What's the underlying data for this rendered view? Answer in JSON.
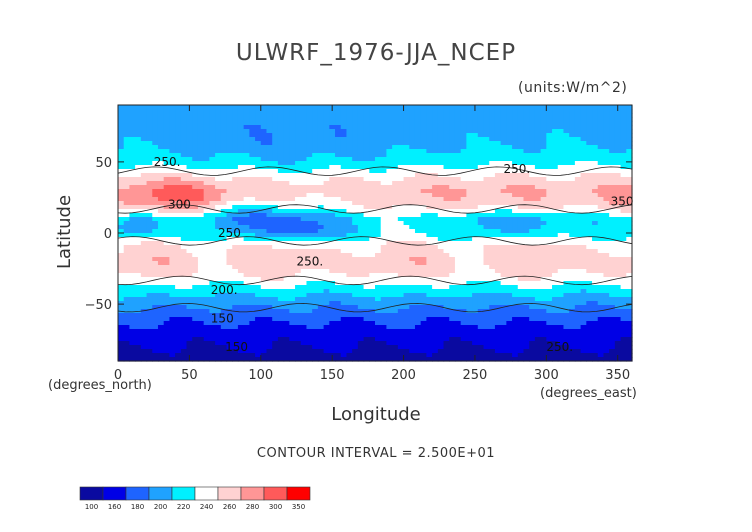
{
  "chart_data": {
    "type": "heatmap",
    "title": "ULWRF_1976-JJA_NCEP",
    "units": "(units:W/m^2)",
    "xlabel": "Longitude",
    "ylabel": "Latitude",
    "x_unit_note": "(degrees_east)",
    "y_unit_note": "(degrees_north)",
    "xlim": [
      0,
      360
    ],
    "ylim": [
      -90,
      90
    ],
    "x_ticks": [
      0,
      50,
      100,
      150,
      200,
      250,
      300,
      350
    ],
    "y_ticks": [
      -50,
      0,
      50
    ],
    "contour_interval_text": "CONTOUR INTERVAL = 2.500E+01",
    "contour_labels": [
      "250.",
      "300",
      "250",
      "250.",
      "250.",
      "200.",
      "150",
      "150",
      "250.",
      "350"
    ],
    "colorbar": {
      "levels": [
        100,
        160,
        180,
        200,
        220,
        240,
        260,
        280,
        300,
        350
      ],
      "colors": [
        "#0a0aa0",
        "#0000e6",
        "#1e64ff",
        "#1fa2ff",
        "#00f0ff",
        "#ffffff",
        "#ffd2d2",
        "#ff9696",
        "#ff5a5a",
        "#ff0000"
      ],
      "tick_labels": [
        "100",
        "160",
        "180",
        "200",
        "220",
        "240",
        "260",
        "280",
        "300",
        "350"
      ]
    },
    "latitude_profile": {
      "lat": [
        -90,
        -80,
        -70,
        -60,
        -50,
        -40,
        -30,
        -20,
        -10,
        0,
        10,
        20,
        30,
        40,
        50,
        60,
        70,
        80,
        90
      ],
      "zonal_mean_wm2": [
        150,
        160,
        170,
        185,
        205,
        230,
        260,
        270,
        262,
        235,
        232,
        258,
        272,
        258,
        235,
        222,
        215,
        212,
        210
      ]
    }
  }
}
